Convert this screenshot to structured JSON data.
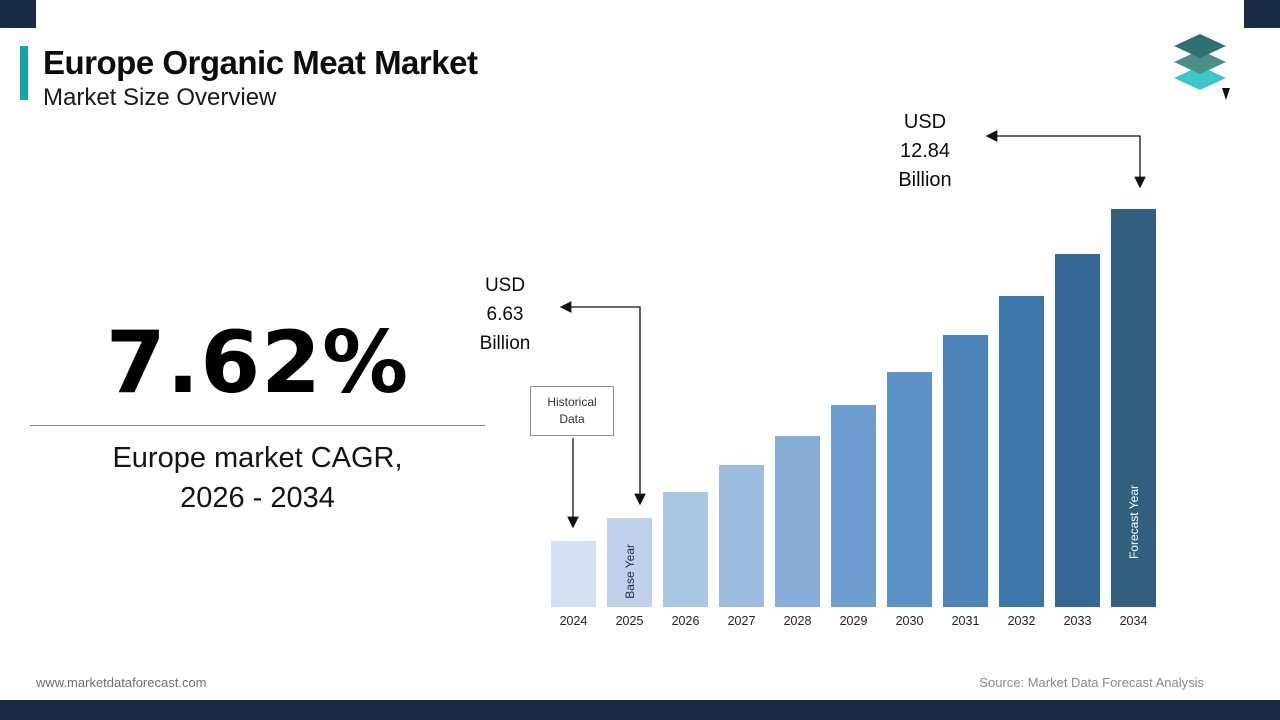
{
  "header": {
    "title": "Europe Organic Meat Market",
    "subtitle": "Market Size Overview"
  },
  "stat": {
    "value": "7.62%",
    "caption": "Europe market CAGR,\n2026 - 2034"
  },
  "annotations": {
    "usd_2025": "USD\n6.63\nBillion",
    "usd_2034": "USD\n12.84\nBillion",
    "historical": "Historical\nData",
    "base_year": "Base Year",
    "forecast_year": "Forecast Year"
  },
  "footer": {
    "website": "www.marketdataforecast.com",
    "source": "Source: Market Data Forecast Analysis"
  },
  "colors": {
    "accent_teal": "#12a3a3",
    "navy": "#192a45",
    "arrow": "#111111",
    "logo_dark": "#2f6f6f",
    "logo_mid": "#4a8d8d",
    "logo_bright": "#3cc8c8"
  },
  "chart_data": {
    "type": "bar",
    "title": "",
    "unit": "USD Billion",
    "categories": [
      "2024",
      "2025",
      "2026",
      "2027",
      "2028",
      "2029",
      "2030",
      "2031",
      "2032",
      "2033",
      "2034"
    ],
    "values": [
      6.16,
      6.63,
      7.14,
      7.68,
      8.27,
      8.9,
      9.57,
      10.3,
      11.09,
      11.93,
      12.84
    ],
    "labeled_points": {
      "2025": 6.63,
      "2034": 12.84
    },
    "base_year": "2025",
    "forecast_year": "2034",
    "xlabel": "",
    "ylabel": "",
    "ylim": [
      0,
      13
    ],
    "grid": false,
    "legend": false,
    "bar_colors": [
      "#d3dff0",
      "#bed1e9",
      "#abc6e3",
      "#9cbcde",
      "#87aed8",
      "#6f9fd0",
      "#5c91c5",
      "#4c84b7",
      "#3d76a8",
      "#356896",
      "#315f7d"
    ]
  }
}
